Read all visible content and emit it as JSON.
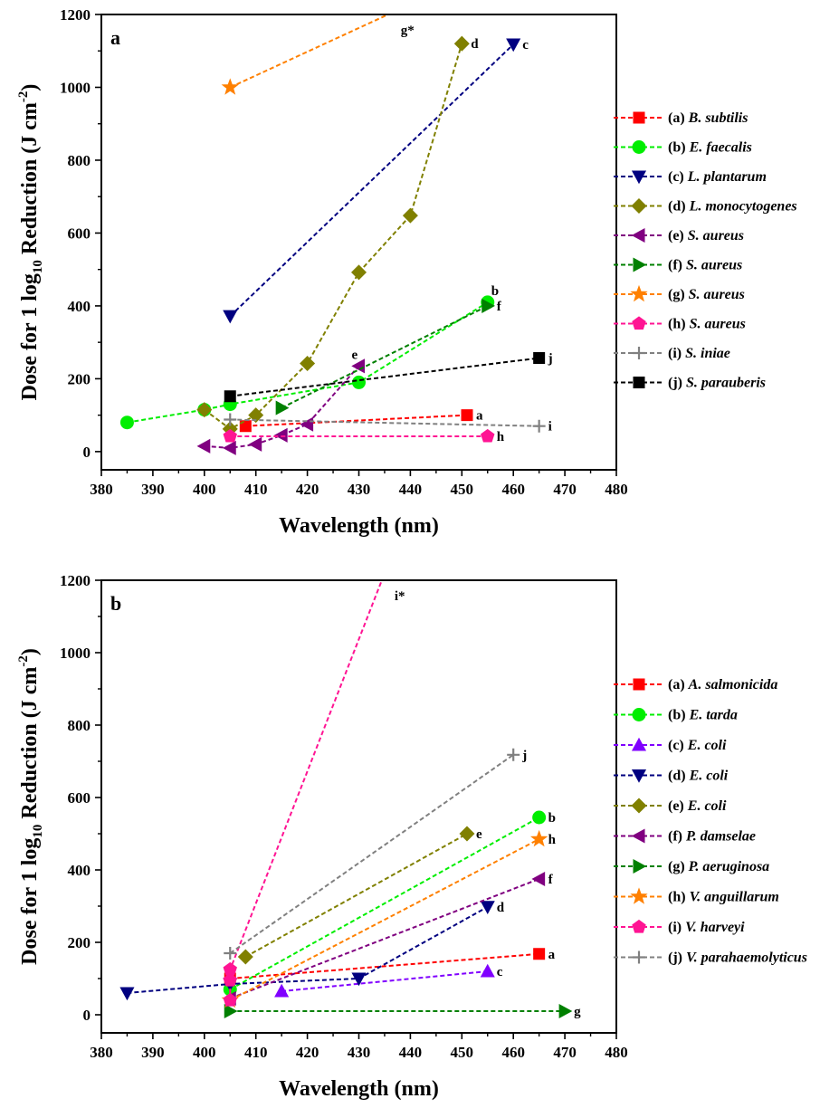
{
  "chart_data": [
    {
      "type": "line",
      "panel_label": "a",
      "xlabel": "Wavelength (nm)",
      "ylabel_parts": [
        "Dose for 1 log",
        "10",
        " Reduction (J cm",
        "-2",
        ")"
      ],
      "xlim": [
        380,
        480
      ],
      "ylim": [
        -50,
        1200
      ],
      "xticks": [
        380,
        390,
        400,
        410,
        420,
        430,
        440,
        450,
        460,
        470,
        480
      ],
      "yticks": [
        0,
        200,
        400,
        600,
        800,
        1000,
        1200
      ],
      "legend_position": "right",
      "series": [
        {
          "letter": "a",
          "prefix": "(a)",
          "name": "B. subtilis",
          "color": "#ff0000",
          "marker": "square",
          "x": [
            408,
            451
          ],
          "y": [
            70,
            100
          ],
          "end_label": "a"
        },
        {
          "letter": "b",
          "prefix": "(b)",
          "name": "E. faecalis",
          "color": "#00ee00",
          "marker": "circle",
          "x": [
            385,
            400,
            405,
            430,
            455
          ],
          "y": [
            80,
            115,
            130,
            190,
            410
          ],
          "end_label": "b"
        },
        {
          "letter": "c",
          "prefix": "(c)",
          "name": "L. plantarum",
          "color": "#000080",
          "marker": "triangle-down",
          "x": [
            405,
            460
          ],
          "y": [
            372,
            1118
          ],
          "end_label": "c"
        },
        {
          "letter": "d",
          "prefix": "(d)",
          "name": "L. monocytogenes",
          "color": "#808000",
          "marker": "diamond",
          "x": [
            400,
            405,
            410,
            420,
            430,
            440,
            450
          ],
          "y": [
            115,
            62,
            100,
            242,
            492,
            648,
            1120
          ],
          "end_label": "d"
        },
        {
          "letter": "e",
          "prefix": "(e)",
          "name": "S. aureus",
          "color": "#800080",
          "marker": "triangle-left",
          "x": [
            400,
            405,
            410,
            415,
            420,
            430
          ],
          "y": [
            15,
            10,
            20,
            45,
            75,
            235
          ],
          "end_label": "e"
        },
        {
          "letter": "f",
          "prefix": "(f)",
          "name": "S. aureus",
          "color": "#008000",
          "marker": "triangle-right",
          "x": [
            415,
            455
          ],
          "y": [
            120,
            400
          ],
          "end_label": "f"
        },
        {
          "letter": "g",
          "prefix": "(g)",
          "name": "S. aureus",
          "color": "#ff8000",
          "marker": "star",
          "x": [
            405,
            451
          ],
          "y": [
            1000,
            1300
          ],
          "end_label": "g*"
        },
        {
          "letter": "h",
          "prefix": "(h)",
          "name": "S. aureus",
          "color": "#ff1493",
          "marker": "pentagon",
          "x": [
            405,
            455
          ],
          "y": [
            42,
            42
          ],
          "end_label": "h"
        },
        {
          "letter": "i",
          "prefix": "(i)",
          "name": "S. iniae",
          "color": "#808080",
          "marker": "plus",
          "x": [
            405,
            465
          ],
          "y": [
            88,
            70
          ],
          "end_label": "i"
        },
        {
          "letter": "j",
          "prefix": "(j)",
          "name": "S. parauberis",
          "color": "#000000",
          "marker": "square",
          "x": [
            405,
            465
          ],
          "y": [
            152,
            257
          ],
          "end_label": "j"
        }
      ]
    },
    {
      "type": "line",
      "panel_label": "b",
      "xlabel": "Wavelength (nm)",
      "ylabel_parts": [
        "Dose for 1 log",
        "10",
        " Reduction (J cm",
        "-2",
        ")"
      ],
      "xlim": [
        380,
        480
      ],
      "ylim": [
        -50,
        1200
      ],
      "xticks": [
        380,
        390,
        400,
        410,
        420,
        430,
        440,
        450,
        460,
        470,
        480
      ],
      "yticks": [
        0,
        200,
        400,
        600,
        800,
        1000,
        1200
      ],
      "legend_position": "right",
      "series": [
        {
          "letter": "a",
          "prefix": "(a)",
          "name": "A. salmonicida",
          "color": "#ff0000",
          "marker": "square",
          "x": [
            405,
            465
          ],
          "y": [
            100,
            168
          ],
          "end_label": "a"
        },
        {
          "letter": "b",
          "prefix": "(b)",
          "name": "E. tarda",
          "color": "#00ee00",
          "marker": "circle",
          "x": [
            405,
            465
          ],
          "y": [
            70,
            545
          ],
          "end_label": "b"
        },
        {
          "letter": "c",
          "prefix": "(c)",
          "name": "E. coli",
          "color": "#8000ff",
          "marker": "triangle-up",
          "x": [
            415,
            455
          ],
          "y": [
            65,
            120
          ],
          "end_label": "c"
        },
        {
          "letter": "d",
          "prefix": "(d)",
          "name": "E. coli",
          "color": "#000080",
          "marker": "triangle-down",
          "x": [
            385,
            405,
            430,
            455
          ],
          "y": [
            60,
            85,
            100,
            298
          ],
          "end_label": "d"
        },
        {
          "letter": "e",
          "prefix": "(e)",
          "name": "E. coli",
          "color": "#808000",
          "marker": "diamond",
          "x": [
            408,
            451
          ],
          "y": [
            160,
            500
          ],
          "end_label": "e"
        },
        {
          "letter": "f",
          "prefix": "(f)",
          "name": "P. damselae",
          "color": "#800080",
          "marker": "triangle-left",
          "x": [
            405,
            465
          ],
          "y": [
            45,
            375
          ],
          "end_label": "f"
        },
        {
          "letter": "g",
          "prefix": "(g)",
          "name": "P. aeruginosa",
          "color": "#008000",
          "marker": "triangle-right",
          "x": [
            405,
            470
          ],
          "y": [
            10,
            10
          ],
          "end_label": "g"
        },
        {
          "letter": "h",
          "prefix": "(h)",
          "name": "V. anguillarum",
          "color": "#ff8000",
          "marker": "star",
          "x": [
            405,
            465
          ],
          "y": [
            40,
            485
          ],
          "end_label": "h"
        },
        {
          "letter": "i",
          "prefix": "(i)",
          "name": "V. harveyi",
          "color": "#ff1493",
          "marker": "pentagon",
          "x": [
            405,
            405,
            405,
            435
          ],
          "y": [
            40,
            95,
            125,
            1220
          ],
          "end_label": "i*"
        },
        {
          "letter": "j",
          "prefix": "(j)",
          "name": "V. parahaemolyticus",
          "color": "#808080",
          "marker": "plus",
          "x": [
            405,
            460
          ],
          "y": [
            170,
            718
          ],
          "end_label": "j"
        }
      ]
    }
  ]
}
